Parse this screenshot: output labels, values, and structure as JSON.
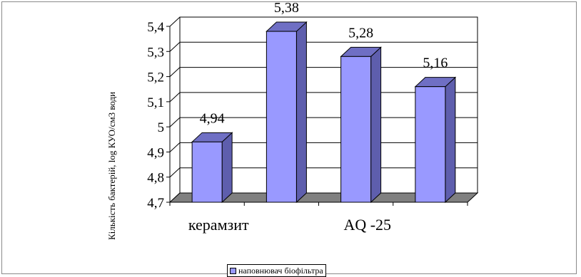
{
  "chart_data": {
    "type": "bar",
    "style": "3d-column",
    "ylabel": "Кількість бактерій, log КУО/см3 води",
    "ylim": [
      4.7,
      5.4
    ],
    "yticks": [
      "4,7",
      "4,8",
      "4,9",
      "5",
      "5,1",
      "5,2",
      "5,3",
      "5,4"
    ],
    "y_tick_values": [
      4.7,
      4.8,
      4.9,
      5.0,
      5.1,
      5.2,
      5.3,
      5.4
    ],
    "x_tick_labels": [
      "керамзит",
      "AQ -25"
    ],
    "values": [
      4.94,
      5.38,
      5.28,
      5.16
    ],
    "data_labels": [
      "4,94",
      "5,38",
      "5,28",
      "5,16"
    ],
    "series": [
      {
        "name": "наповнювач біофільтра",
        "values": [
          4.94,
          5.38,
          5.28,
          5.16
        ]
      }
    ],
    "legend_position": "bottom",
    "grid": true,
    "colors": {
      "bar_front": "#9999ff",
      "bar_side": "#5e5ead",
      "bar_top": "#6f6fc4",
      "floor": "#808080"
    }
  }
}
